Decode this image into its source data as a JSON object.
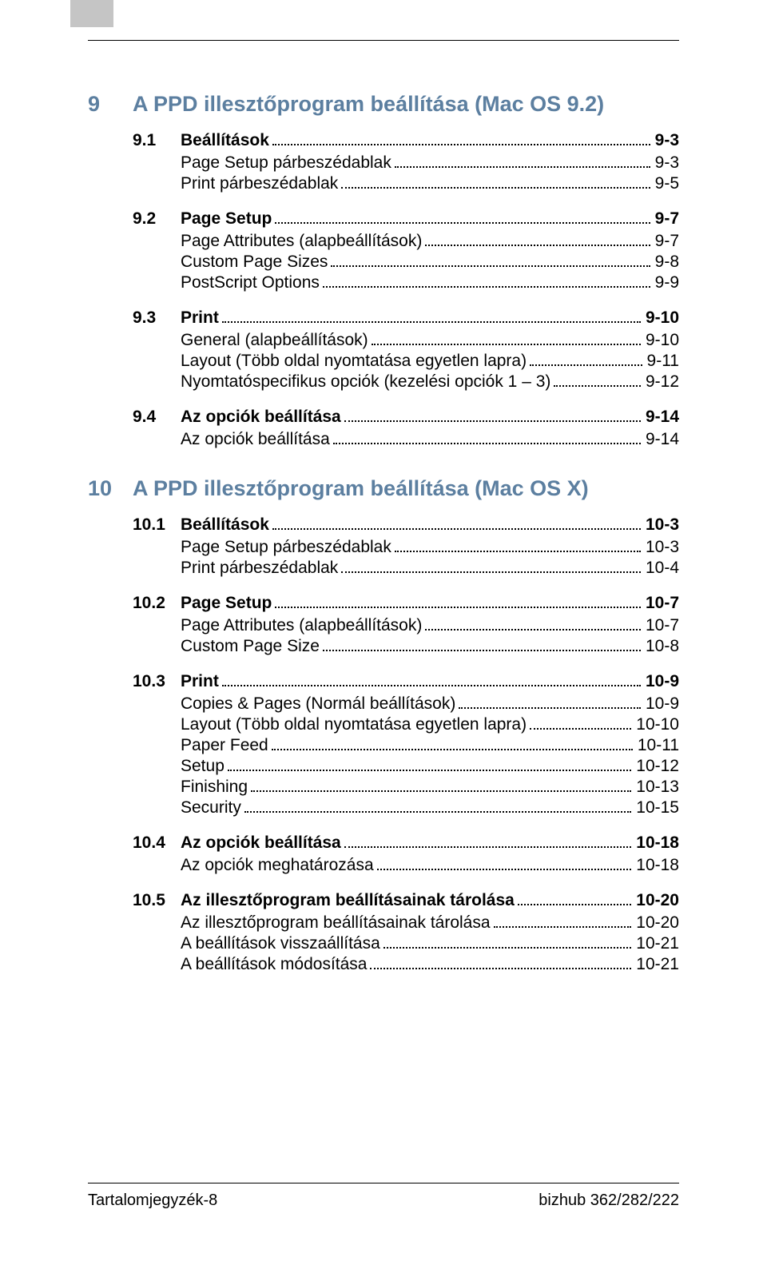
{
  "colors": {
    "chapter_heading": "#5c7fa0",
    "body_text": "#000000",
    "thumb_tab": "#c5c5c5",
    "rule": "#000000",
    "background": "#ffffff"
  },
  "typography": {
    "chapter_fontsize_pt": 20,
    "section_fontsize_pt": 16,
    "sub_fontsize_pt": 16,
    "footer_fontsize_pt": 15
  },
  "chapters": [
    {
      "num": "9",
      "title": "A PPD illesztőprogram beállítása (Mac OS 9.2)",
      "sections": [
        {
          "num": "9.1",
          "label": "Beállítások",
          "page": "9-3",
          "subs": [
            {
              "label": "Page Setup párbeszédablak",
              "page": "9-3"
            },
            {
              "label": "Print párbeszédablak",
              "page": "9-5"
            }
          ]
        },
        {
          "num": "9.2",
          "label": "Page Setup",
          "page": "9-7",
          "subs": [
            {
              "label": "Page Attributes (alapbeállítások)",
              "page": "9-7"
            },
            {
              "label": "Custom Page Sizes",
              "page": "9-8"
            },
            {
              "label": "PostScript Options",
              "page": "9-9"
            }
          ]
        },
        {
          "num": "9.3",
          "label": "Print",
          "page": "9-10",
          "subs": [
            {
              "label": "General (alapbeállítások)",
              "page": "9-10"
            },
            {
              "label": "Layout (Több oldal nyomtatása egyetlen lapra)",
              "page": "9-11"
            },
            {
              "label": "Nyomtatóspecifikus opciók (kezelési opciók 1 – 3)",
              "page": "9-12"
            }
          ]
        },
        {
          "num": "9.4",
          "label": "Az opciók beállítása",
          "page": "9-14",
          "subs": [
            {
              "label": "Az opciók beállítása",
              "page": "9-14"
            }
          ]
        }
      ]
    },
    {
      "num": "10",
      "title": "A PPD illesztőprogram beállítása (Mac OS X)",
      "sections": [
        {
          "num": "10.1",
          "label": "Beállítások",
          "page": "10-3",
          "subs": [
            {
              "label": "Page Setup párbeszédablak",
              "page": "10-3"
            },
            {
              "label": "Print párbeszédablak",
              "page": "10-4"
            }
          ]
        },
        {
          "num": "10.2",
          "label": "Page Setup",
          "page": "10-7",
          "subs": [
            {
              "label": "Page Attributes (alapbeállítások)",
              "page": "10-7"
            },
            {
              "label": "Custom Page Size",
              "page": "10-8"
            }
          ]
        },
        {
          "num": "10.3",
          "label": "Print",
          "page": "10-9",
          "subs": [
            {
              "label": "Copies & Pages (Normál beállítások)",
              "page": "10-9"
            },
            {
              "label": "Layout (Több oldal nyomtatása egyetlen lapra)",
              "page": "10-10"
            },
            {
              "label": "Paper Feed",
              "page": "10-11"
            },
            {
              "label": "Setup",
              "page": "10-12"
            },
            {
              "label": "Finishing",
              "page": "10-13"
            },
            {
              "label": "Security",
              "page": "10-15"
            }
          ]
        },
        {
          "num": "10.4",
          "label": "Az opciók beállítása",
          "page": "10-18",
          "subs": [
            {
              "label": "Az opciók meghatározása",
              "page": "10-18"
            }
          ]
        },
        {
          "num": "10.5",
          "label": "Az illesztőprogram beállításainak tárolása",
          "page": "10-20",
          "subs": [
            {
              "label": "Az illesztőprogram beállításainak tárolása",
              "page": "10-20"
            },
            {
              "label": "A beállítások visszaállítása",
              "page": "10-21"
            },
            {
              "label": "A beállítások módosítása",
              "page": "10-21"
            }
          ]
        }
      ]
    }
  ],
  "footer": {
    "left": "Tartalomjegyzék-8",
    "right": "bizhub 362/282/222"
  }
}
